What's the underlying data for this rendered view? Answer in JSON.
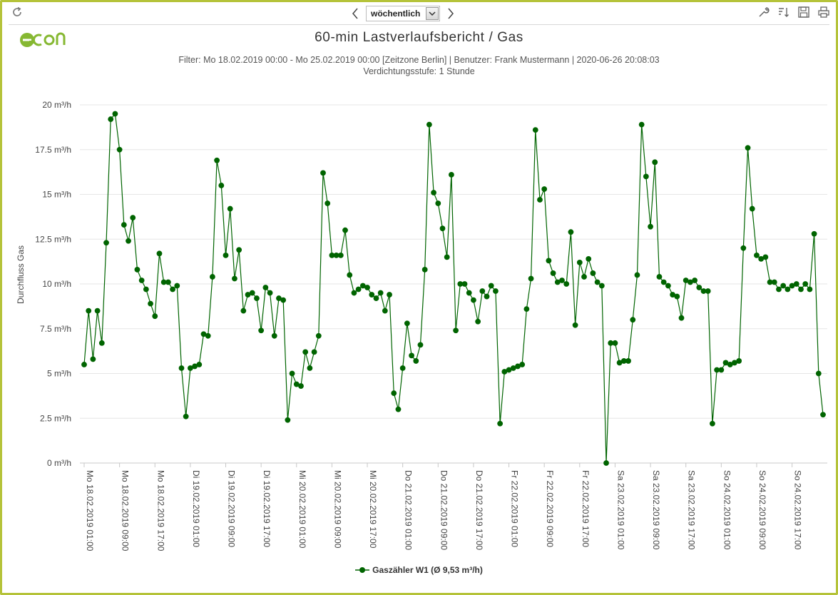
{
  "toolbar": {
    "period_select_value": "wöchentlich",
    "icons": [
      "refresh-icon",
      "chevron-left-icon",
      "chevron-down-icon",
      "chevron-right-icon",
      "wrench-icon",
      "sort-icon",
      "save-icon",
      "print-icon"
    ]
  },
  "logo": {
    "text": "econ",
    "color": "#86b832"
  },
  "colors": {
    "series": "#006400",
    "border": "#b5c33a",
    "grid": "#e6e6e6"
  },
  "chart_data": {
    "type": "line",
    "title": "60-min Lastverlaufsbericht / Gas",
    "subtitle_line1": "Filter: Mo 18.02.2019 00:00 - Mo 25.02.2019 00:00 [Zeitzone Berlin] | Benutzer: Frank Mustermann | 2020-06-26 20:08:03",
    "subtitle_line2": "Verdichtungsstufe: 1 Stunde",
    "ylabel": "Durchfluss Gas",
    "xlabel": "",
    "ylim": [
      0,
      20
    ],
    "y_ticks": [
      0,
      2.5,
      5,
      7.5,
      10,
      12.5,
      15,
      17.5,
      20
    ],
    "y_tick_labels": [
      "0 m³/h",
      "2.5 m³/h",
      "5 m³/h",
      "7.5 m³/h",
      "10 m³/h",
      "12.5 m³/h",
      "15 m³/h",
      "17.5 m³/h",
      "20 m³/h"
    ],
    "x_point_count": 168,
    "x_tick_indices": [
      0,
      8,
      16,
      24,
      32,
      40,
      48,
      56,
      64,
      72,
      80,
      88,
      96,
      104,
      112,
      120,
      128,
      136,
      144,
      152,
      160
    ],
    "x_tick_labels": [
      "Mo 18.02.2019 01:00",
      "Mo 18.02.2019 09:00",
      "Mo 18.02.2019 17:00",
      "Di 19.02.2019 01:00",
      "Di 19.02.2019 09:00",
      "Di 19.02.2019 17:00",
      "Mi 20.02.2019 01:00",
      "Mi 20.02.2019 09:00",
      "Mi 20.02.2019 17:00",
      "Do 21.02.2019 01:00",
      "Do 21.02.2019 09:00",
      "Do 21.02.2019 17:00",
      "Fr 22.02.2019 01:00",
      "Fr 22.02.2019 09:00",
      "Fr 22.02.2019 17:00",
      "Sa 23.02.2019 01:00",
      "Sa 23.02.2019 09:00",
      "Sa 23.02.2019 17:00",
      "So 24.02.2019 01:00",
      "So 24.02.2019 09:00",
      "So 24.02.2019 17:00"
    ],
    "grid": true,
    "legend_position": "bottom-center",
    "series": [
      {
        "name": "Gaszähler W1",
        "legend_label": "Gaszähler W1 (Ø 9,53 m³/h)",
        "values": [
          5.5,
          8.5,
          5.8,
          8.5,
          6.7,
          12.3,
          19.2,
          19.5,
          17.5,
          13.3,
          12.4,
          13.7,
          10.8,
          10.2,
          9.7,
          8.9,
          8.2,
          11.7,
          10.1,
          10.1,
          9.7,
          9.9,
          5.3,
          2.6,
          5.3,
          5.4,
          5.5,
          7.2,
          7.1,
          10.4,
          16.9,
          15.5,
          11.6,
          14.2,
          10.3,
          11.9,
          8.5,
          9.4,
          9.5,
          9.2,
          7.4,
          9.8,
          9.5,
          7.1,
          9.2,
          9.1,
          2.4,
          5.0,
          4.4,
          4.3,
          6.2,
          5.3,
          6.2,
          7.1,
          16.2,
          14.5,
          11.6,
          11.6,
          11.6,
          13.0,
          10.5,
          9.5,
          9.7,
          9.9,
          9.8,
          9.4,
          9.2,
          9.5,
          8.5,
          9.4,
          3.9,
          3.0,
          5.3,
          7.8,
          6.0,
          5.7,
          6.6,
          10.8,
          18.9,
          15.1,
          14.5,
          13.1,
          11.5,
          16.1,
          7.4,
          10.0,
          10.0,
          9.5,
          9.1,
          7.9,
          9.6,
          9.3,
          9.9,
          9.6,
          2.2,
          5.1,
          5.2,
          5.3,
          5.4,
          5.5,
          8.6,
          10.3,
          18.6,
          14.7,
          15.3,
          11.3,
          10.6,
          10.1,
          10.2,
          10.0,
          12.9,
          7.7,
          11.2,
          10.4,
          11.4,
          10.6,
          10.1,
          9.9,
          0.0,
          6.7,
          6.7,
          5.6,
          5.7,
          5.7,
          8.0,
          10.5,
          18.9,
          16.0,
          13.2,
          16.8,
          10.4,
          10.1,
          9.9,
          9.4,
          9.3,
          8.1,
          10.2,
          10.1,
          10.2,
          9.8,
          9.6,
          9.6,
          2.2,
          5.2,
          5.2,
          5.6,
          5.5,
          5.6,
          5.7,
          12.0,
          17.6,
          14.2,
          11.6,
          11.4,
          11.5,
          10.1,
          10.1,
          9.7,
          9.9,
          9.7,
          9.9,
          10.0,
          9.7,
          10.0,
          9.7,
          12.8,
          5.0,
          2.7
        ]
      }
    ]
  }
}
